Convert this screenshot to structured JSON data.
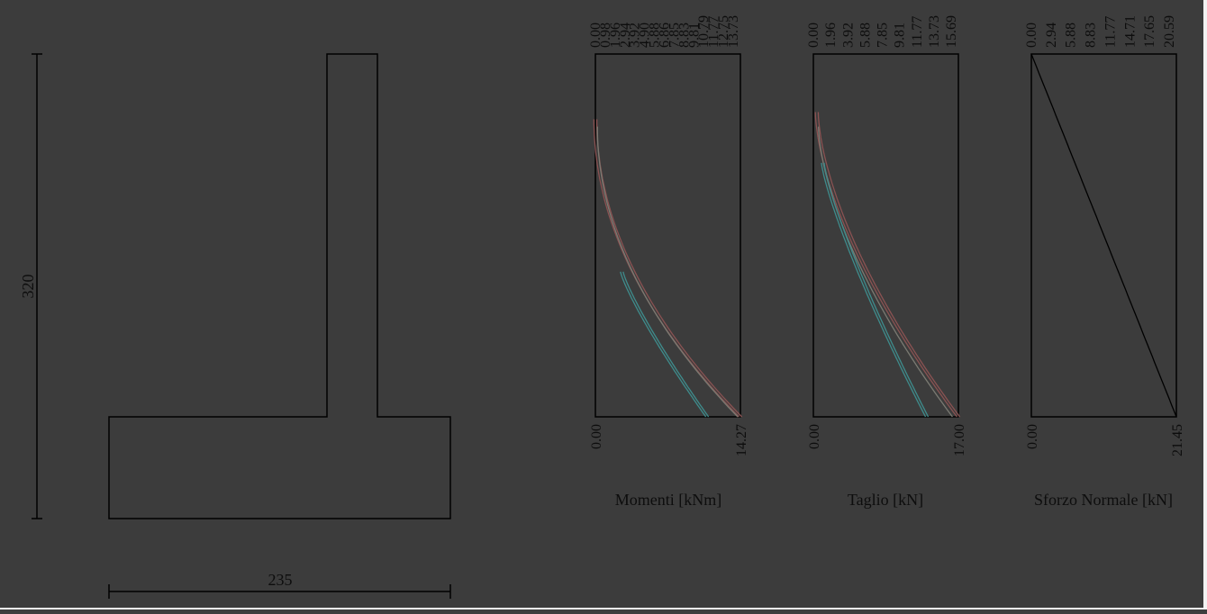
{
  "wall": {
    "height_label": "320",
    "base_label": "235"
  },
  "panels": [
    {
      "id": "momenti",
      "title_main": "Momenti",
      "title_unit": "[kNm]",
      "top_ticks": [
        "0.00",
        "0.98",
        "1.96",
        "2.94",
        "3.92",
        "4.90",
        "5.88",
        "6.86",
        "7.85",
        "8.83",
        "9.81",
        "10.79",
        "11.77",
        "12.75",
        "13.73"
      ],
      "bottom_ticks": [
        "0.00",
        "14.27"
      ],
      "xlim": [
        0,
        14.27
      ],
      "curves": [
        {
          "color": "#8a5252",
          "offset": 1.6,
          "rng": [
            0.18,
            1.0
          ],
          "x0": 0.0,
          "x1": 14.27,
          "power": 2.0
        },
        {
          "color": "#8a5252",
          "offset": -1.6,
          "rng": [
            0.18,
            1.0
          ],
          "x0": 0.0,
          "x1": 14.27,
          "power": 2.0
        },
        {
          "color": "#7a7a72",
          "offset": 0,
          "rng": [
            0.2,
            1.0
          ],
          "x0": 0.2,
          "x1": 14.0,
          "power": 2.0
        },
        {
          "color": "#3e8c8c",
          "offset": 1.5,
          "rng": [
            0.6,
            1.0
          ],
          "x0": 2.6,
          "x1": 11.0,
          "power": 1.2
        },
        {
          "color": "#3e8c8c",
          "offset": -1.5,
          "rng": [
            0.6,
            1.0
          ],
          "x0": 2.6,
          "x1": 11.0,
          "power": 1.2
        }
      ]
    },
    {
      "id": "taglio",
      "title_main": "Taglio",
      "title_unit": "[kN]",
      "top_ticks": [
        "0.00",
        "1.96",
        "3.92",
        "5.88",
        "7.85",
        "9.81",
        "11.77",
        "13.73",
        "15.69"
      ],
      "bottom_ticks": [
        "0.00",
        "17.00"
      ],
      "xlim": [
        0,
        17.0
      ],
      "curves": [
        {
          "color": "#8a5252",
          "offset": 1.6,
          "rng": [
            0.16,
            1.0
          ],
          "x0": 0.4,
          "x1": 17.0,
          "power": 1.6
        },
        {
          "color": "#8a5252",
          "offset": -1.6,
          "rng": [
            0.16,
            1.0
          ],
          "x0": 0.4,
          "x1": 17.0,
          "power": 1.6
        },
        {
          "color": "#7a7a72",
          "offset": 0,
          "rng": [
            0.2,
            1.0
          ],
          "x0": 0.6,
          "x1": 16.3,
          "power": 1.6
        },
        {
          "color": "#3e8c8c",
          "offset": 1.5,
          "rng": [
            0.3,
            1.0
          ],
          "x0": 1.1,
          "x1": 13.3,
          "power": 1.25
        },
        {
          "color": "#3e8c8c",
          "offset": -1.5,
          "rng": [
            0.3,
            1.0
          ],
          "x0": 1.1,
          "x1": 13.3,
          "power": 1.25
        }
      ]
    },
    {
      "id": "sforzo",
      "title_main": "Sforzo Normale",
      "title_unit": "[kN]",
      "top_ticks": [
        "0.00",
        "2.94",
        "5.88",
        "8.83",
        "11.77",
        "14.71",
        "17.65",
        "20.59"
      ],
      "bottom_ticks": [
        "0.00",
        "21.45"
      ],
      "xlim": [
        0,
        21.45
      ],
      "curves": [
        {
          "color": "#000000",
          "offset": 0,
          "rng": [
            0.0,
            1.0
          ],
          "x0": 0.0,
          "x1": 21.45,
          "power": 1.0
        }
      ]
    }
  ]
}
